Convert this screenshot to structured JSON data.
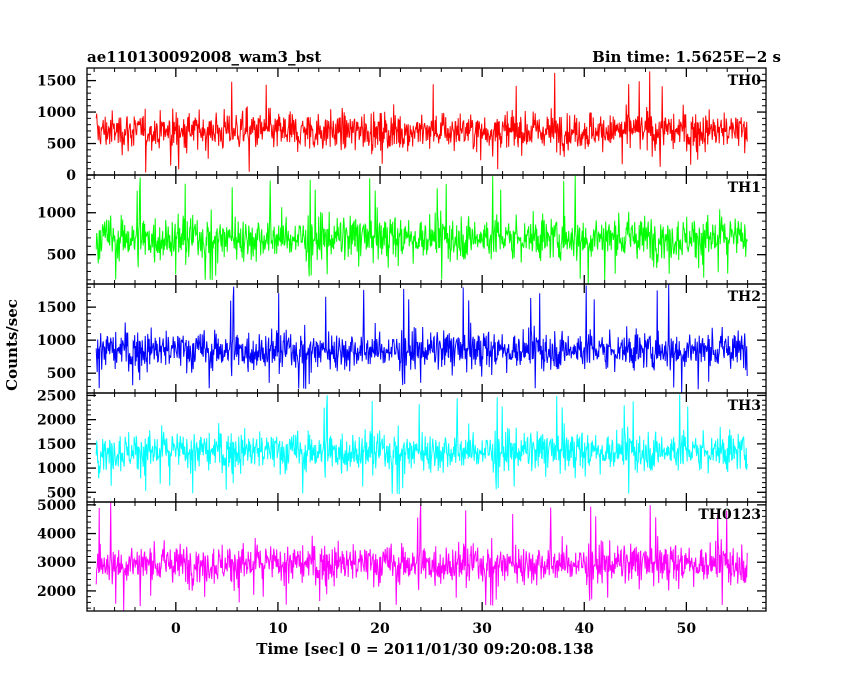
{
  "header": {
    "left": "ae110130092008_wam3_bst",
    "right": "Bin time: 1.5625E−2 s"
  },
  "chart_data": {
    "type": "line",
    "x": {
      "label": "Time [sec] 0 = 2011/01/30 09:20:08.138",
      "range": [
        -8.7,
        57.8
      ],
      "ticks": [
        0,
        10,
        20,
        30,
        40,
        50
      ],
      "minor_step": 2,
      "data_range": [
        -7.8,
        56.0
      ]
    },
    "ylabel": "Counts/sec",
    "grid": false,
    "panels": [
      {
        "name": "TH0",
        "color": "#ff0000",
        "ylim": [
          0,
          1700
        ],
        "yticks": [
          0,
          500,
          1000,
          1500
        ],
        "minor_step": 100,
        "typical_range": [
          250,
          1150
        ],
        "min_value": 40,
        "peak_value": 1700,
        "center": 700
      },
      {
        "name": "TH1",
        "color": "#00ff00",
        "ylim": [
          150,
          1450
        ],
        "yticks": [
          500,
          1000
        ],
        "minor_step": 100,
        "typical_range": [
          300,
          1100
        ],
        "min_value": 150,
        "peak_value": 1450,
        "center": 700
      },
      {
        "name": "TH2",
        "color": "#0000ff",
        "ylim": [
          200,
          1850
        ],
        "yticks": [
          500,
          1000,
          1500
        ],
        "minor_step": 100,
        "typical_range": [
          400,
          1300
        ],
        "min_value": 200,
        "peak_value": 1850,
        "center": 850
      },
      {
        "name": "TH3",
        "color": "#00ffff",
        "ylim": [
          300,
          2550
        ],
        "yticks": [
          500,
          1000,
          1500,
          2000,
          2500
        ],
        "minor_step": 100,
        "typical_range": [
          700,
          1950
        ],
        "min_value": 350,
        "peak_value": 2550,
        "center": 1350
      },
      {
        "name": "TH0123",
        "color": "#ff00ff",
        "ylim": [
          1300,
          5100
        ],
        "yticks": [
          2000,
          3000,
          4000,
          5000
        ],
        "minor_step": 200,
        "typical_range": [
          1900,
          4000
        ],
        "min_value": 1300,
        "peak_value": 5100,
        "center": 2950
      }
    ]
  }
}
